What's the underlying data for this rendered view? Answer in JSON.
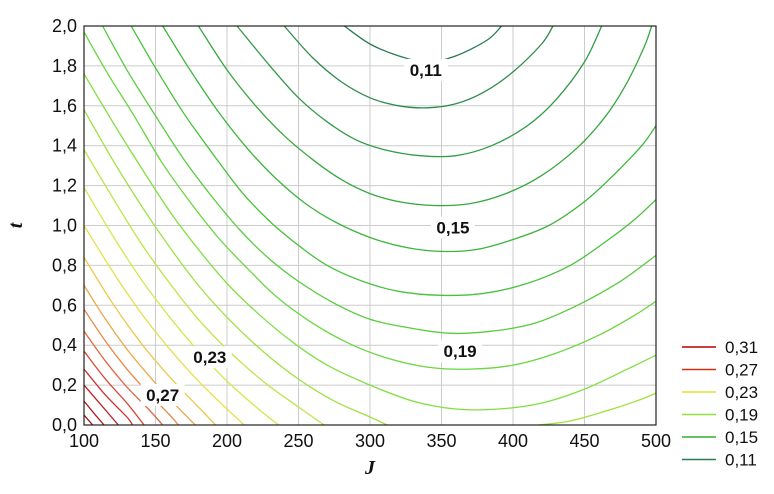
{
  "chart_data": {
    "type": "contour",
    "xlabel": "J",
    "ylabel": "t",
    "xlim": [
      100,
      500
    ],
    "ylim": [
      0.0,
      2.0
    ],
    "x_ticks": [
      "100",
      "150",
      "200",
      "250",
      "300",
      "350",
      "400",
      "450",
      "500"
    ],
    "y_ticks": [
      "0,0",
      "0,2",
      "0,4",
      "0,6",
      "0,8",
      "1,0",
      "1,2",
      "1,4",
      "1,6",
      "1,8",
      "2,0"
    ],
    "grid": true,
    "legend_position": "bottom-right, outside",
    "legend": [
      {
        "label": "0,31",
        "color": "#b80000"
      },
      {
        "label": "0,27",
        "color": "#d03010"
      },
      {
        "label": "0,23",
        "color": "#e0e030"
      },
      {
        "label": "0,19",
        "color": "#90e040"
      },
      {
        "label": "0,15",
        "color": "#30b030"
      },
      {
        "label": "0,11",
        "color": "#2a7a52"
      }
    ],
    "contour_labels": [
      {
        "text": "0,11",
        "x": 339,
        "y": 1.78
      },
      {
        "text": "0,15",
        "x": 358,
        "y": 0.99
      },
      {
        "text": "0,19",
        "x": 363,
        "y": 0.37
      },
      {
        "text": "0,23",
        "x": 188,
        "y": 0.34
      },
      {
        "text": "0,27",
        "x": 155,
        "y": 0.15
      }
    ],
    "contours": [
      {
        "level": 0.111,
        "color": "#2a7a52",
        "points": [
          [
            282,
            2.0
          ],
          [
            300,
            1.91
          ],
          [
            320,
            1.85
          ],
          [
            340,
            1.82
          ],
          [
            360,
            1.85
          ],
          [
            382,
            1.93
          ],
          [
            392,
            2.0
          ]
        ]
      },
      {
        "level": 0.12,
        "color": "#2f8a4c",
        "points": [
          [
            240,
            2.0
          ],
          [
            260,
            1.84
          ],
          [
            280,
            1.72
          ],
          [
            300,
            1.64
          ],
          [
            320,
            1.6
          ],
          [
            340,
            1.59
          ],
          [
            360,
            1.61
          ],
          [
            380,
            1.67
          ],
          [
            400,
            1.77
          ],
          [
            420,
            1.91
          ],
          [
            428,
            2.0
          ]
        ]
      },
      {
        "level": 0.13,
        "color": "#329a46",
        "points": [
          [
            207,
            2.0
          ],
          [
            230,
            1.8
          ],
          [
            250,
            1.64
          ],
          [
            270,
            1.52
          ],
          [
            290,
            1.43
          ],
          [
            310,
            1.38
          ],
          [
            335,
            1.35
          ],
          [
            360,
            1.35
          ],
          [
            385,
            1.4
          ],
          [
            410,
            1.5
          ],
          [
            430,
            1.63
          ],
          [
            450,
            1.82
          ],
          [
            462,
            2.0
          ]
        ]
      },
      {
        "level": 0.14,
        "color": "#36a840",
        "points": [
          [
            180,
            2.0
          ],
          [
            200,
            1.78
          ],
          [
            220,
            1.6
          ],
          [
            240,
            1.45
          ],
          [
            260,
            1.33
          ],
          [
            280,
            1.23
          ],
          [
            300,
            1.16
          ],
          [
            320,
            1.12
          ],
          [
            345,
            1.1
          ],
          [
            370,
            1.11
          ],
          [
            395,
            1.16
          ],
          [
            420,
            1.25
          ],
          [
            445,
            1.39
          ],
          [
            465,
            1.55
          ],
          [
            480,
            1.72
          ],
          [
            492,
            1.9
          ],
          [
            497,
            2.0
          ]
        ]
      },
      {
        "level": 0.15,
        "color": "#3cb53c",
        "points": [
          [
            155,
            2.0
          ],
          [
            175,
            1.77
          ],
          [
            195,
            1.56
          ],
          [
            215,
            1.38
          ],
          [
            235,
            1.23
          ],
          [
            255,
            1.11
          ],
          [
            275,
            1.02
          ],
          [
            300,
            0.94
          ],
          [
            325,
            0.89
          ],
          [
            350,
            0.87
          ],
          [
            375,
            0.88
          ],
          [
            400,
            0.93
          ],
          [
            425,
            1.0
          ],
          [
            450,
            1.12
          ],
          [
            470,
            1.25
          ],
          [
            490,
            1.4
          ],
          [
            500,
            1.5
          ]
        ]
      },
      {
        "level": 0.16,
        "color": "#48c23c",
        "points": [
          [
            133,
            2.0
          ],
          [
            150,
            1.79
          ],
          [
            170,
            1.56
          ],
          [
            190,
            1.36
          ],
          [
            210,
            1.17
          ],
          [
            230,
            1.02
          ],
          [
            250,
            0.9
          ],
          [
            270,
            0.8
          ],
          [
            295,
            0.72
          ],
          [
            320,
            0.67
          ],
          [
            350,
            0.65
          ],
          [
            380,
            0.66
          ],
          [
            410,
            0.71
          ],
          [
            440,
            0.8
          ],
          [
            465,
            0.92
          ],
          [
            485,
            1.03
          ],
          [
            500,
            1.13
          ]
        ]
      },
      {
        "level": 0.17,
        "color": "#58cc3e",
        "points": [
          [
            113,
            2.0
          ],
          [
            130,
            1.78
          ],
          [
            150,
            1.55
          ],
          [
            170,
            1.33
          ],
          [
            190,
            1.14
          ],
          [
            210,
            0.97
          ],
          [
            230,
            0.83
          ],
          [
            250,
            0.72
          ],
          [
            275,
            0.61
          ],
          [
            300,
            0.53
          ],
          [
            325,
            0.49
          ],
          [
            355,
            0.46
          ],
          [
            385,
            0.47
          ],
          [
            415,
            0.51
          ],
          [
            445,
            0.6
          ],
          [
            475,
            0.72
          ],
          [
            500,
            0.85
          ]
        ]
      },
      {
        "level": 0.18,
        "color": "#6ad640",
        "points": [
          [
            100,
            1.97
          ],
          [
            115,
            1.78
          ],
          [
            135,
            1.55
          ],
          [
            155,
            1.31
          ],
          [
            175,
            1.11
          ],
          [
            195,
            0.93
          ],
          [
            215,
            0.78
          ],
          [
            235,
            0.64
          ],
          [
            260,
            0.51
          ],
          [
            285,
            0.41
          ],
          [
            310,
            0.34
          ],
          [
            340,
            0.29
          ],
          [
            370,
            0.28
          ],
          [
            400,
            0.3
          ],
          [
            430,
            0.36
          ],
          [
            460,
            0.45
          ],
          [
            485,
            0.55
          ],
          [
            500,
            0.62
          ]
        ]
      },
      {
        "level": 0.19,
        "color": "#82de42",
        "points": [
          [
            100,
            1.76
          ],
          [
            120,
            1.52
          ],
          [
            140,
            1.29
          ],
          [
            160,
            1.07
          ],
          [
            180,
            0.88
          ],
          [
            200,
            0.71
          ],
          [
            220,
            0.57
          ],
          [
            245,
            0.42
          ],
          [
            270,
            0.3
          ],
          [
            300,
            0.2
          ],
          [
            330,
            0.12
          ],
          [
            360,
            0.08
          ],
          [
            390,
            0.08
          ],
          [
            420,
            0.11
          ],
          [
            450,
            0.18
          ],
          [
            480,
            0.28
          ],
          [
            500,
            0.35
          ]
        ]
      },
      {
        "level": 0.2,
        "color": "#9ee244",
        "points": [
          [
            100,
            1.58
          ],
          [
            120,
            1.33
          ],
          [
            140,
            1.1
          ],
          [
            160,
            0.89
          ],
          [
            180,
            0.7
          ],
          [
            200,
            0.54
          ],
          [
            225,
            0.37
          ],
          [
            250,
            0.23
          ],
          [
            275,
            0.12
          ],
          [
            300,
            0.04
          ],
          [
            312,
            0.0
          ]
        ]
      },
      {
        "level": 0.2,
        "color": "#9ee244",
        "points": [
          [
            418,
            0.0
          ],
          [
            440,
            0.02
          ],
          [
            465,
            0.07
          ],
          [
            490,
            0.13
          ],
          [
            500,
            0.16
          ]
        ]
      },
      {
        "level": 0.21,
        "color": "#bce646",
        "points": [
          [
            100,
            1.38
          ],
          [
            120,
            1.14
          ],
          [
            140,
            0.91
          ],
          [
            160,
            0.71
          ],
          [
            180,
            0.53
          ],
          [
            200,
            0.38
          ],
          [
            225,
            0.22
          ],
          [
            250,
            0.09
          ],
          [
            268,
            0.0
          ]
        ]
      },
      {
        "level": 0.22,
        "color": "#d4e84a",
        "points": [
          [
            100,
            1.19
          ],
          [
            120,
            0.95
          ],
          [
            140,
            0.73
          ],
          [
            160,
            0.54
          ],
          [
            180,
            0.37
          ],
          [
            200,
            0.22
          ],
          [
            222,
            0.08
          ],
          [
            236,
            0.0
          ]
        ]
      },
      {
        "level": 0.23,
        "color": "#e6e04c",
        "points": [
          [
            100,
            1.0
          ],
          [
            120,
            0.77
          ],
          [
            140,
            0.56
          ],
          [
            160,
            0.38
          ],
          [
            180,
            0.22
          ],
          [
            200,
            0.08
          ],
          [
            212,
            0.0
          ]
        ]
      },
      {
        "level": 0.24,
        "color": "#ecc84a",
        "points": [
          [
            100,
            0.84
          ],
          [
            120,
            0.61
          ],
          [
            140,
            0.41
          ],
          [
            160,
            0.24
          ],
          [
            180,
            0.09
          ],
          [
            192,
            0.0
          ]
        ]
      },
      {
        "level": 0.25,
        "color": "#eca848",
        "points": [
          [
            100,
            0.7
          ],
          [
            115,
            0.53
          ],
          [
            130,
            0.38
          ],
          [
            145,
            0.25
          ],
          [
            160,
            0.13
          ],
          [
            175,
            0.02
          ],
          [
            178,
            0.0
          ]
        ]
      },
      {
        "level": 0.26,
        "color": "#e88844",
        "points": [
          [
            100,
            0.58
          ],
          [
            115,
            0.42
          ],
          [
            130,
            0.28
          ],
          [
            145,
            0.16
          ],
          [
            160,
            0.05
          ],
          [
            166,
            0.0
          ]
        ]
      },
      {
        "level": 0.27,
        "color": "#e06840",
        "points": [
          [
            100,
            0.47
          ],
          [
            115,
            0.32
          ],
          [
            130,
            0.19
          ],
          [
            145,
            0.08
          ],
          [
            155,
            0.0
          ]
        ]
      },
      {
        "level": 0.28,
        "color": "#d8483a",
        "points": [
          [
            100,
            0.37
          ],
          [
            115,
            0.23
          ],
          [
            130,
            0.11
          ],
          [
            142,
            0.0
          ]
        ]
      },
      {
        "level": 0.29,
        "color": "#cc3030",
        "points": [
          [
            100,
            0.28
          ],
          [
            115,
            0.15
          ],
          [
            130,
            0.04
          ],
          [
            134,
            0.0
          ]
        ]
      },
      {
        "level": 0.3,
        "color": "#c01e22",
        "points": [
          [
            100,
            0.2
          ],
          [
            112,
            0.1
          ],
          [
            124,
            0.0
          ]
        ]
      },
      {
        "level": 0.31,
        "color": "#b01018",
        "points": [
          [
            100,
            0.12
          ],
          [
            108,
            0.05
          ],
          [
            114,
            0.0
          ]
        ]
      },
      {
        "level": 0.32,
        "color": "#a00810",
        "points": [
          [
            100,
            0.05
          ],
          [
            106,
            0.0
          ]
        ]
      }
    ]
  }
}
